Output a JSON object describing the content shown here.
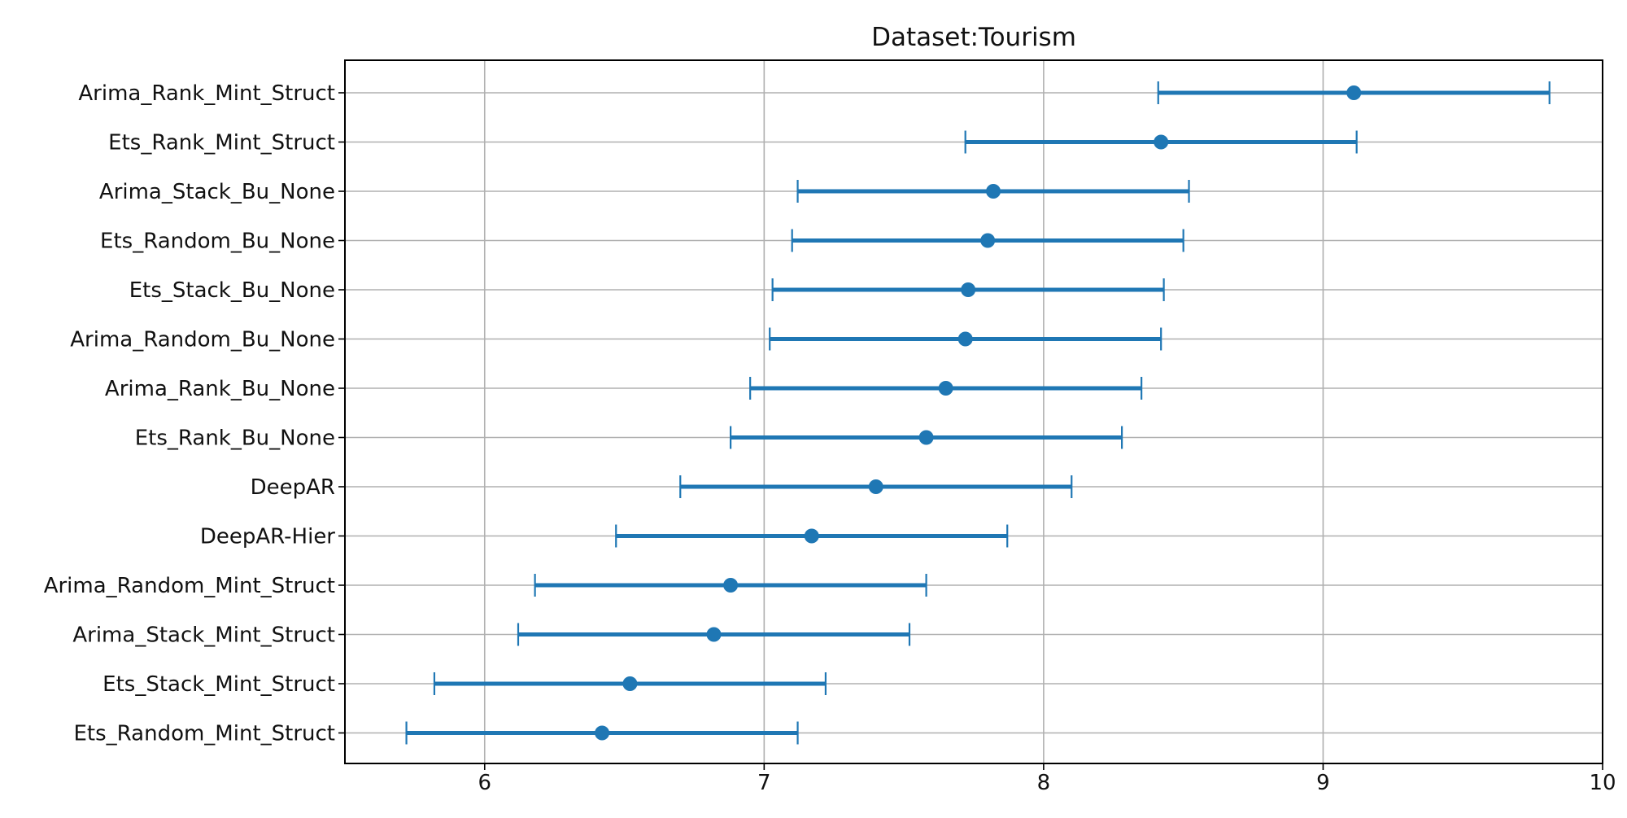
{
  "chart_data": {
    "type": "errorbar",
    "title": "Dataset:Tourism",
    "xlabel": "",
    "ylabel": "",
    "xlim": [
      5.5,
      10.0
    ],
    "xticks": [
      6,
      7,
      8,
      9,
      10
    ],
    "grid": true,
    "color": "#1f77b4",
    "series": [
      {
        "name": "Arima_Rank_Mint_Struct",
        "mean": 9.11,
        "low": 8.41,
        "high": 9.81
      },
      {
        "name": "Ets_Rank_Mint_Struct",
        "mean": 8.42,
        "low": 7.72,
        "high": 9.12
      },
      {
        "name": "Arima_Stack_Bu_None",
        "mean": 7.82,
        "low": 7.12,
        "high": 8.52
      },
      {
        "name": "Ets_Random_Bu_None",
        "mean": 7.8,
        "low": 7.1,
        "high": 8.5
      },
      {
        "name": "Ets_Stack_Bu_None",
        "mean": 7.73,
        "low": 7.03,
        "high": 8.43
      },
      {
        "name": "Arima_Random_Bu_None",
        "mean": 7.72,
        "low": 7.02,
        "high": 8.42
      },
      {
        "name": "Arima_Rank_Bu_None",
        "mean": 7.65,
        "low": 6.95,
        "high": 8.35
      },
      {
        "name": "Ets_Rank_Bu_None",
        "mean": 7.58,
        "low": 6.88,
        "high": 8.28
      },
      {
        "name": "DeepAR",
        "mean": 7.4,
        "low": 6.7,
        "high": 8.1
      },
      {
        "name": "DeepAR-Hier",
        "mean": 7.17,
        "low": 6.47,
        "high": 7.87
      },
      {
        "name": "Arima_Random_Mint_Struct",
        "mean": 6.88,
        "low": 6.18,
        "high": 7.58
      },
      {
        "name": "Arima_Stack_Mint_Struct",
        "mean": 6.82,
        "low": 6.12,
        "high": 7.52
      },
      {
        "name": "Ets_Stack_Mint_Struct",
        "mean": 6.52,
        "low": 5.82,
        "high": 7.22
      },
      {
        "name": "Ets_Random_Mint_Struct",
        "mean": 6.42,
        "low": 5.72,
        "high": 7.12
      }
    ]
  }
}
